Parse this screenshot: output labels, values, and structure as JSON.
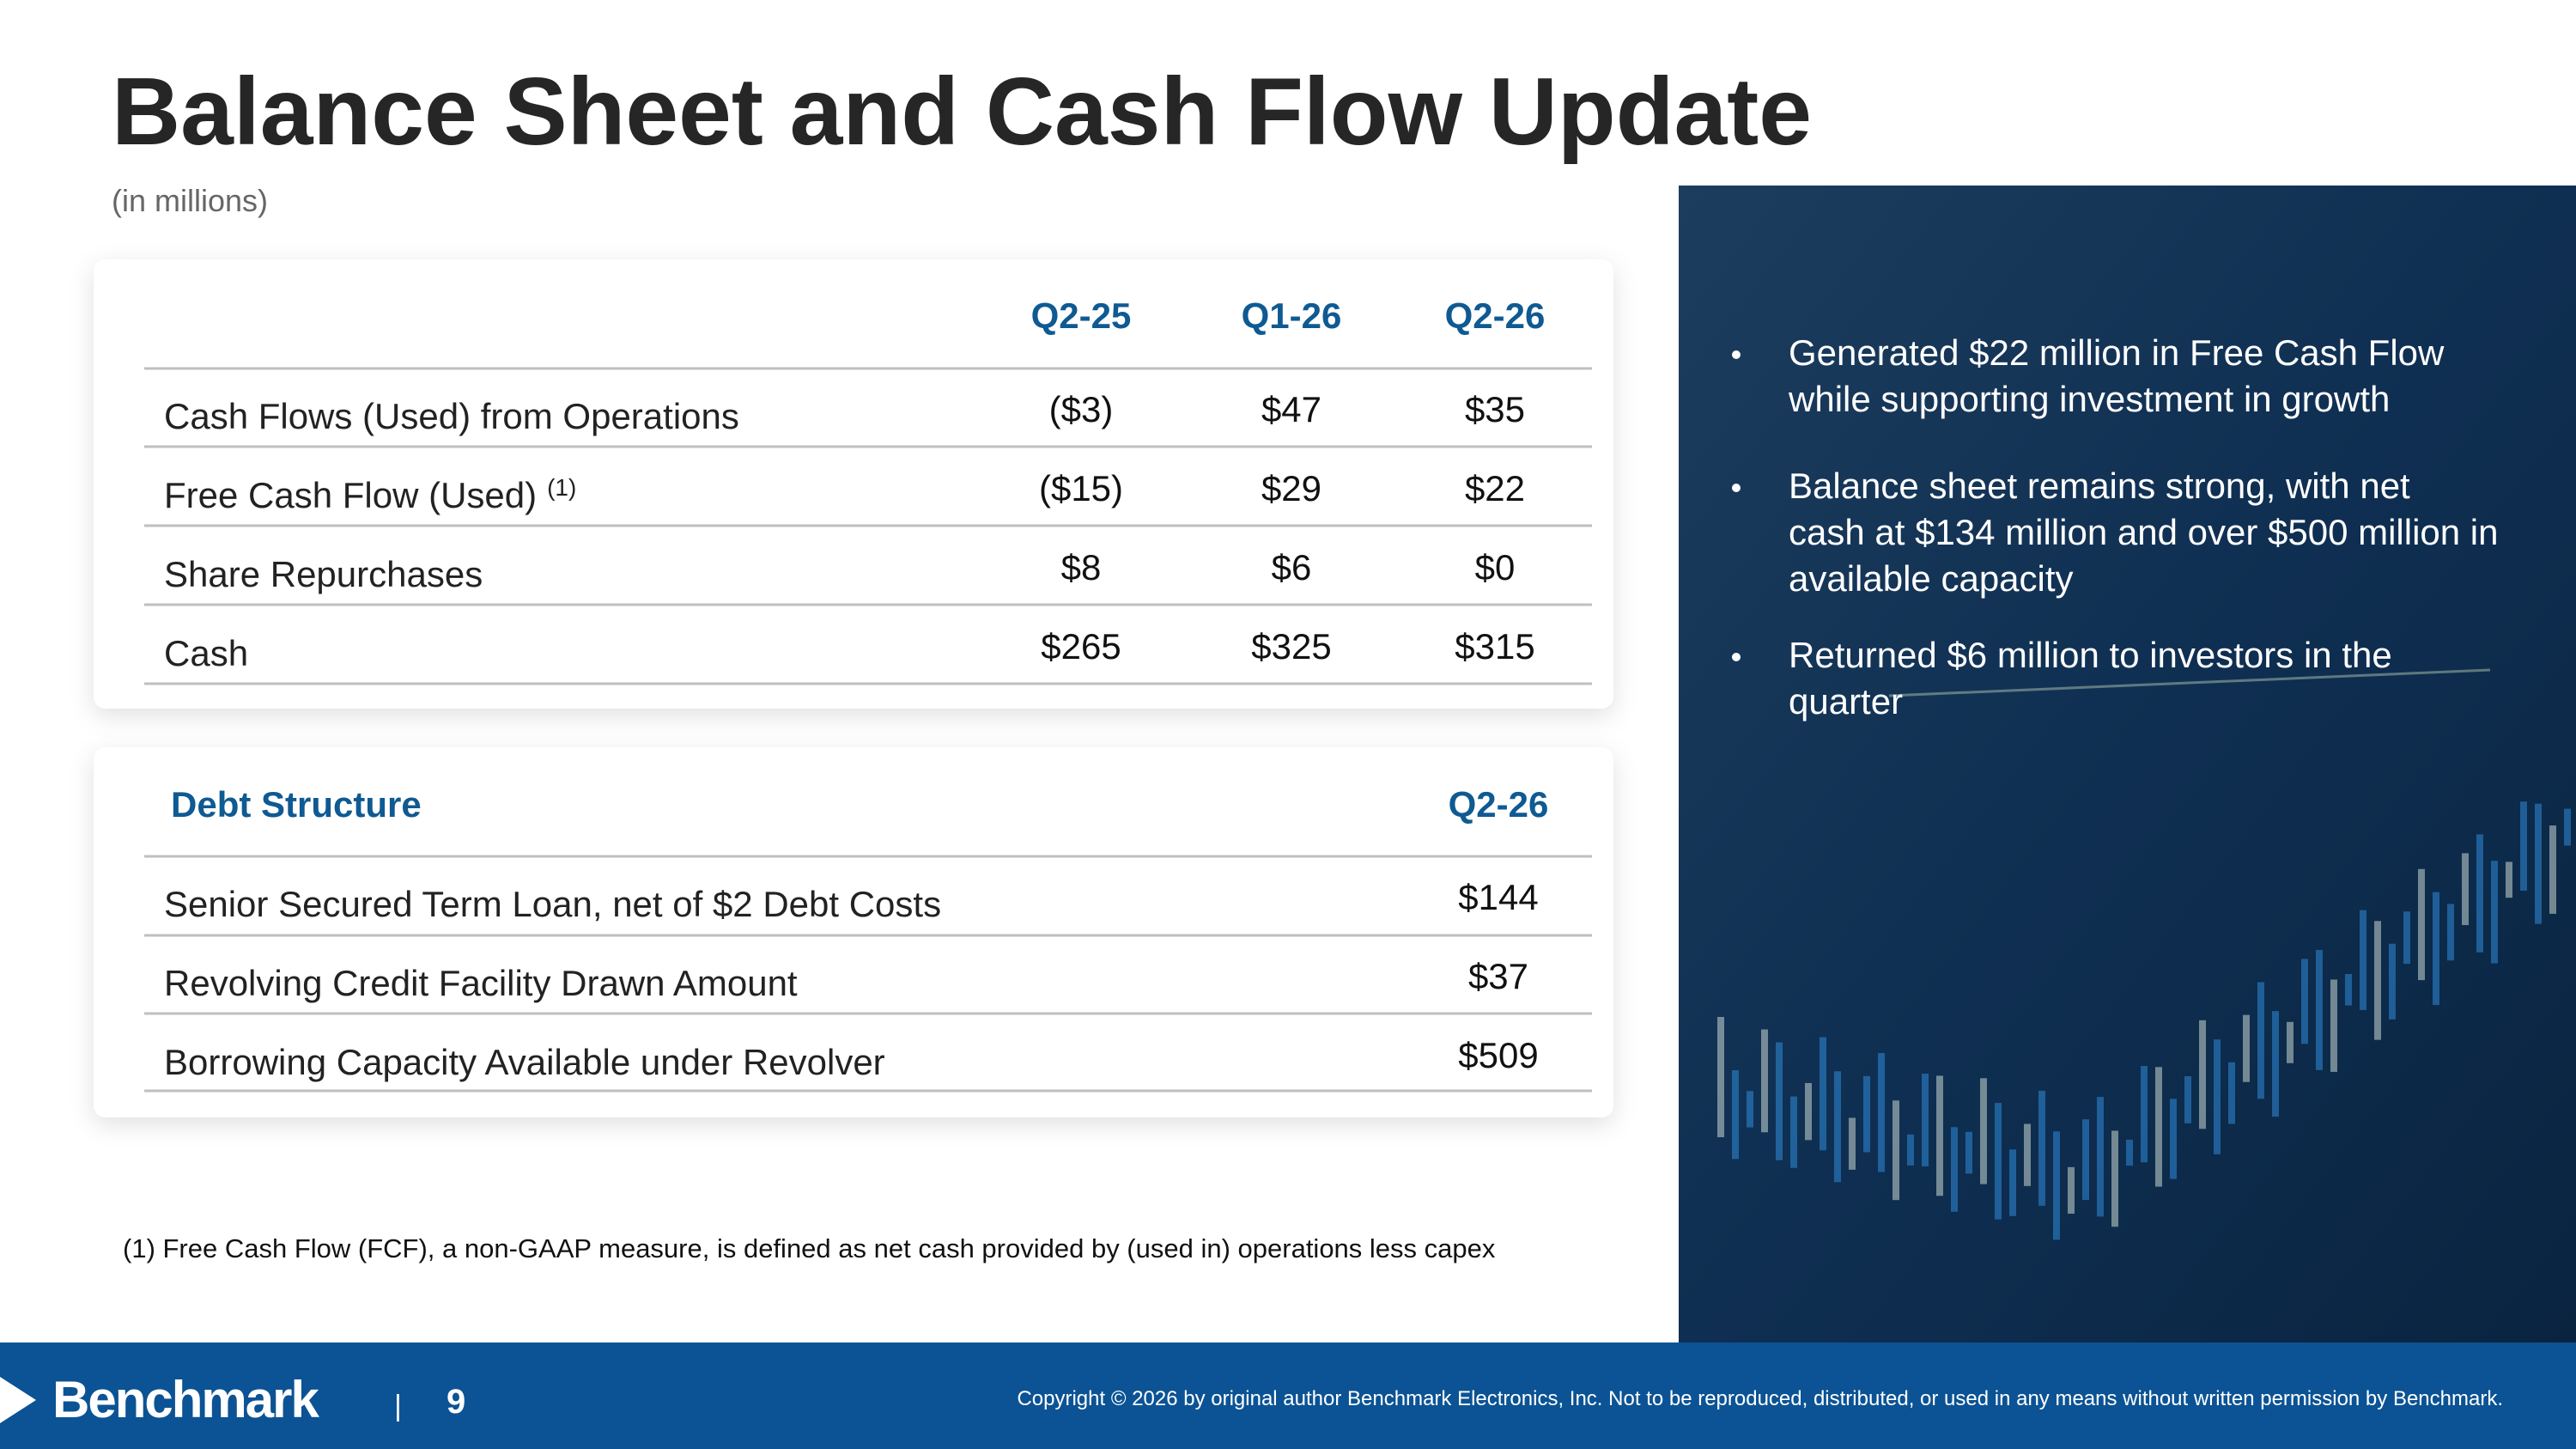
{
  "header": {
    "title": "Balance Sheet and Cash Flow Update",
    "subtitle": "(in millions)"
  },
  "cash_table": {
    "columns": [
      "Q2-25",
      "Q1-26",
      "Q2-26"
    ],
    "rows": [
      {
        "label": "Cash Flows (Used) from Operations",
        "values": [
          "($3)",
          "$47",
          "$35"
        ]
      },
      {
        "label": "Free Cash Flow (Used)",
        "note": "(1)",
        "values": [
          "($15)",
          "$29",
          "$22"
        ]
      },
      {
        "label": "Share Repurchases",
        "values": [
          "$8",
          "$6",
          "$0"
        ]
      },
      {
        "label": "Cash",
        "values": [
          "$265",
          "$325",
          "$315"
        ]
      }
    ]
  },
  "debt_table": {
    "title": "Debt Structure",
    "column": "Q2-26",
    "rows": [
      {
        "label": "Senior Secured Term Loan, net of $2 Debt Costs",
        "value": "$144"
      },
      {
        "label": "Revolving Credit Facility Drawn Amount",
        "value": "$37"
      },
      {
        "label": "Borrowing Capacity Available under Revolver",
        "value": "$509"
      }
    ]
  },
  "bullets": [
    [
      "Generated $22 million in Free Cash Flow",
      "while supporting investment in growth"
    ],
    [
      "Balance sheet remains strong, with net",
      "cash at $134 million and over $500 million in",
      "available capacity"
    ],
    [
      "Returned $6 million to investors in the",
      "quarter"
    ]
  ],
  "footnote": "(1) Free Cash Flow (FCF), a non-GAAP measure, is defined as net cash provided by (used in) operations less capex",
  "footer": {
    "logo": "Benchmark",
    "separator": "|",
    "page_number": "9",
    "copyright": "Copyright © 2026 by original author Benchmark Electronics, Inc. Not to be reproduced, distributed, or used in any means without written permission by Benchmark."
  }
}
